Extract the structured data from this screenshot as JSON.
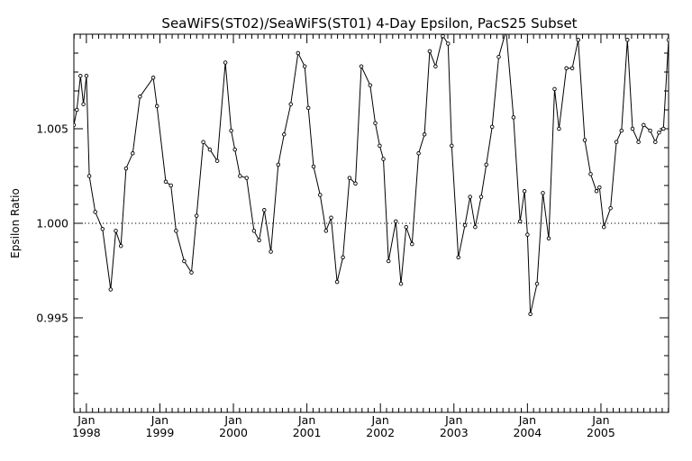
{
  "chart_data": {
    "type": "line",
    "title": "SeaWiFS(ST02)/SeaWiFS(ST01) 4-Day Epsilon, PacS25 Subset",
    "xlabel": "",
    "ylabel": "Epsilon Ratio",
    "xlim": [
      1997.83,
      2005.92
    ],
    "ylim": [
      0.99,
      1.01
    ],
    "reference_line": 1.0,
    "grid": false,
    "y_ticks": [
      0.995,
      1.0,
      1.005
    ],
    "y_tick_labels": [
      "0.995",
      "1.000",
      "1.005"
    ],
    "y_minor_step": 0.001,
    "x_ticks": [
      {
        "year": 1998,
        "month_label": "Jan",
        "year_label": "1998"
      },
      {
        "year": 1999,
        "month_label": "Jan",
        "year_label": "1999"
      },
      {
        "year": 2000,
        "month_label": "Jan",
        "year_label": "2000"
      },
      {
        "year": 2001,
        "month_label": "Jan",
        "year_label": "2001"
      },
      {
        "year": 2002,
        "month_label": "Jan",
        "year_label": "2002"
      },
      {
        "year": 2003,
        "month_label": "Jan",
        "year_label": "2003"
      },
      {
        "year": 2004,
        "month_label": "Jan",
        "year_label": "2004"
      },
      {
        "year": 2005,
        "month_label": "Jan",
        "year_label": "2005"
      }
    ],
    "series": [
      {
        "x": [
          1997.83,
          1997.87,
          1997.92,
          1997.96,
          1998.0,
          1998.04,
          1998.12,
          1998.22,
          1998.33,
          1998.4,
          1998.47,
          1998.54,
          1998.63,
          1998.73,
          1998.91,
          1998.96,
          1999.08,
          1999.15,
          1999.22,
          1999.33,
          1999.43,
          1999.5,
          1999.59,
          1999.68,
          1999.78,
          1999.89,
          1999.97,
          2000.02,
          2000.09,
          2000.18,
          2000.28,
          2000.35,
          2000.42,
          2000.51,
          2000.61,
          2000.69,
          2000.78,
          2000.88,
          2000.97,
          2001.02,
          2001.09,
          2001.18,
          2001.26,
          2001.33,
          2001.41,
          2001.49,
          2001.58,
          2001.66,
          2001.74,
          2001.86,
          2001.93,
          2001.99,
          2002.04,
          2002.11,
          2002.21,
          2002.28,
          2002.35,
          2002.43,
          2002.52,
          2002.6,
          2002.67,
          2002.75,
          2002.85,
          2002.92,
          2002.97,
          2003.06,
          2003.15,
          2003.22,
          2003.29,
          2003.37,
          2003.44,
          2003.52,
          2003.61,
          2003.71,
          2003.81,
          2003.9,
          2003.96,
          2004.0,
          2004.04,
          2004.13,
          2004.21,
          2004.29,
          2004.37,
          2004.43,
          2004.53,
          2004.61,
          2004.69,
          2004.78,
          2004.86,
          2004.94,
          2004.98,
          2005.04,
          2005.13,
          2005.21,
          2005.28,
          2005.36,
          2005.43,
          2005.51,
          2005.58,
          2005.67,
          2005.74,
          2005.79,
          2005.85,
          2005.92
        ],
        "y": [
          1.0052,
          1.006,
          1.0078,
          1.0063,
          1.0078,
          1.0025,
          1.0006,
          0.9997,
          0.9965,
          0.9996,
          0.9988,
          1.0029,
          1.0037,
          1.0067,
          1.0077,
          1.0062,
          1.0022,
          1.002,
          0.9996,
          0.998,
          0.9974,
          1.0004,
          1.0043,
          1.0039,
          1.0033,
          1.0085,
          1.0049,
          1.0039,
          1.0025,
          1.0024,
          0.9996,
          0.9991,
          1.0007,
          0.9985,
          1.0031,
          1.0047,
          1.0063,
          1.009,
          1.0083,
          1.0061,
          1.003,
          1.0015,
          0.9996,
          1.0003,
          0.9969,
          0.9982,
          1.0024,
          1.0021,
          1.0083,
          1.0073,
          1.0053,
          1.0041,
          1.0034,
          0.998,
          1.0001,
          0.9968,
          0.9998,
          0.9989,
          1.0037,
          1.0047,
          1.0091,
          1.0083,
          1.0099,
          1.0095,
          1.0041,
          0.9982,
          0.9999,
          1.0014,
          0.9998,
          1.0014,
          1.0031,
          1.0051,
          1.0088,
          1.0102,
          1.0056,
          1.0001,
          1.0017,
          0.9994,
          0.9952,
          0.9968,
          1.0016,
          0.9992,
          1.0071,
          1.005,
          1.0082,
          1.0082,
          1.0097,
          1.0044,
          1.0026,
          1.0017,
          1.0019,
          0.9998,
          1.0008,
          1.0043,
          1.0049,
          1.0097,
          1.005,
          1.0043,
          1.0052,
          1.0049,
          1.0043,
          1.0048,
          1.005,
          1.0097
        ]
      }
    ]
  }
}
